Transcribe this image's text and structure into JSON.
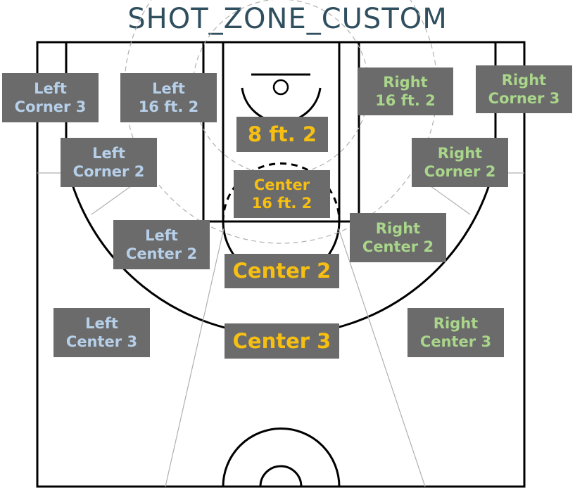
{
  "title": "SHOT_ZONE_CUSTOM",
  "colors": {
    "left_label": "#b7d0ea",
    "right_label": "#a9d68a",
    "center_label": "#f7bf11",
    "label_bg": "#6b6b6b",
    "title": "#2f4f5f"
  },
  "zones": {
    "left_corner_3": [
      "Left",
      "Corner 3"
    ],
    "left_16ft_2": [
      "Left",
      "16 ft. 2"
    ],
    "right_16ft_2": [
      "Right",
      "16 ft. 2"
    ],
    "right_corner_3": [
      "Right",
      "Corner 3"
    ],
    "center_8ft_2": [
      "8 ft. 2"
    ],
    "left_corner_2": [
      "Left",
      "Corner 2"
    ],
    "right_corner_2": [
      "Right",
      "Corner 2"
    ],
    "center_16ft_2": [
      "Center",
      "16 ft. 2"
    ],
    "left_center_2": [
      "Left",
      "Center 2"
    ],
    "right_center_2": [
      "Right",
      "Center 2"
    ],
    "center_2": [
      "Center 2"
    ],
    "left_center_3": [
      "Left",
      "Center 3"
    ],
    "center_3": [
      "Center 3"
    ],
    "right_center_3": [
      "Right",
      "Center 3"
    ]
  }
}
